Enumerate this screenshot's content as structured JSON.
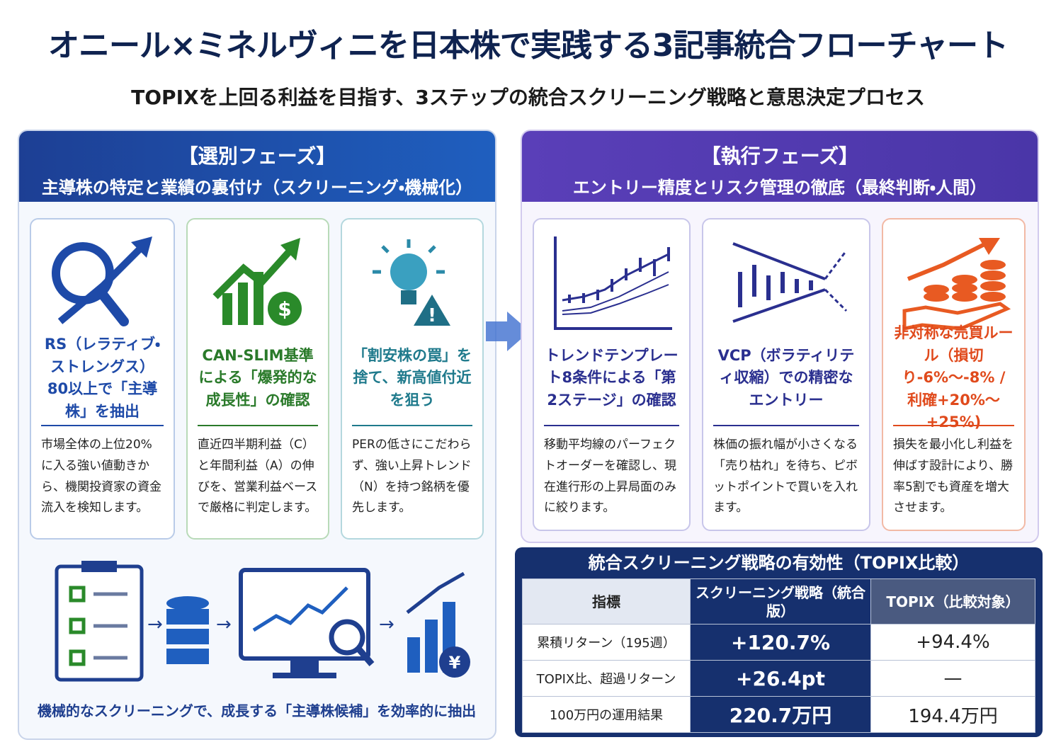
{
  "header": {
    "title": "オニール×ミネルヴィニを日本株で実践する3記事統合フローチャート",
    "subtitle": "TOPIXを上回る利益を目指す、3ステップの統合スクリーニング戦略と意思決定プロセス"
  },
  "selection_phase": {
    "heading": "【選別フェーズ】",
    "subheading": "主導株の特定と業績の裏付け（スクリーニング・機械化）",
    "cards": [
      {
        "title": "RS（レラティブ・ストレングス）80以上で「主導株」を抽出",
        "body": "市場全体の上位20%に入る強い値動きから、機関投資家の資金流入を検知します。"
      },
      {
        "title": "CAN-SLIM基準による「爆発的な成長性」の確認",
        "body": "直近四半期利益（C）と年間利益（A）の伸びを、営業利益ベースで厳格に判定します。"
      },
      {
        "title": "「割安株の罠」を捨て、新高値付近を狙う",
        "body": "PERの低さにこだわらず、強い上昇トレンド（N）を持つ銘柄を優先します。"
      }
    ],
    "caption": "機械的なスクリーニングで、成長する「主導株候補」を効率的に抽出"
  },
  "execution_phase": {
    "heading": "【執行フェーズ】",
    "subheading": "エントリー精度とリスク管理の徹底（最終判断・人間）",
    "cards": [
      {
        "title": "トレンドテンプレート8条件による「第2ステージ」の確認",
        "body": "移動平均線のパーフェクトオーダーを確認し、現在進行形の上昇局面のみに絞ります。"
      },
      {
        "title": "VCP（ボラティリティ収縮）での精密なエントリー",
        "body": "株価の振れ幅が小さくなる「売り枯れ」を待ち、ピボットポイントで買いを入れます。"
      },
      {
        "title": "非対称な売買ルール（損切り-6%〜-8% / 利確+20%〜+25%)",
        "body": "損失を最小化し利益を伸ばす設計により、勝率5割でも資産を増大させます。"
      }
    ]
  },
  "table": {
    "title": "統合スクリーニング戦略の有効性（TOPIX比較）",
    "columns": [
      "指標",
      "スクリーニング戦略（統合版）",
      "TOPIX（比較対象）"
    ],
    "rows": [
      [
        "累積リターン（195週）",
        "+120.7%",
        "+94.4%"
      ],
      [
        "TOPIX比、超過リターン",
        "+26.4pt",
        "—"
      ],
      [
        "100万円の運用結果",
        "220.7万円",
        "194.4万円"
      ]
    ]
  }
}
